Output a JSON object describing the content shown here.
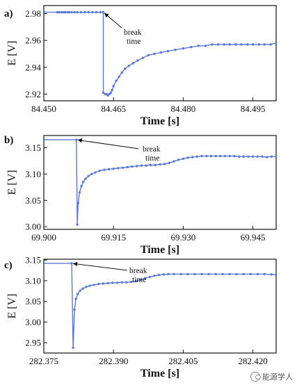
{
  "watermark": "能源学人",
  "colors": {
    "series": "#5b78d4",
    "axis": "#111111"
  },
  "chart_data": [
    {
      "type": "line",
      "panel_label": "a)",
      "xlabel": "Time [s]",
      "ylabel": "E [V]",
      "xlim": [
        84.45,
        84.5
      ],
      "ylim": [
        2.915,
        2.986
      ],
      "xticks": [
        84.45,
        84.465,
        84.48,
        84.495
      ],
      "xtick_labels": [
        "84.450",
        "84.465",
        "84.480",
        "84.495"
      ],
      "yticks": [
        2.92,
        2.94,
        2.96,
        2.98
      ],
      "ytick_labels": [
        "2.92",
        "2.94",
        "2.96",
        "2.98"
      ],
      "annotation": {
        "text_line1": "break",
        "text_line2": "time",
        "x": 84.4628,
        "y": 2.981
      },
      "series": [
        {
          "color": "#5b78d4",
          "x": [
            84.45,
            84.4529,
            84.4529,
            84.4533,
            84.4538,
            84.4542,
            84.4546,
            84.4551,
            84.4555,
            84.456,
            84.4566,
            84.4572,
            84.458,
            84.4588,
            84.4596,
            84.4605,
            84.4613,
            84.4622,
            84.4628,
            84.4628,
            84.4632,
            84.4635,
            84.4638,
            84.4641,
            84.4644,
            84.4647,
            84.465
          ],
          "y": [
            2.981,
            2.981,
            2.981,
            2.981,
            2.981,
            2.981,
            2.981,
            2.981,
            2.981,
            2.981,
            2.981,
            2.981,
            2.981,
            2.981,
            2.981,
            2.981,
            2.981,
            2.981,
            2.981,
            2.921,
            2.92,
            2.92,
            2.919,
            2.92,
            2.921,
            2.923,
            2.926
          ]
        },
        {
          "color": "#5b78d4",
          "x": [
            84.465,
            84.4656,
            84.4662,
            84.4668,
            84.4675,
            84.4683,
            84.4692,
            84.4702,
            84.4713,
            84.4725,
            84.4738,
            84.4752,
            84.4767,
            84.4783,
            84.48,
            84.4817,
            84.4833,
            84.4848,
            84.4862,
            84.4875,
            84.4888,
            84.49,
            84.4913,
            84.4925,
            84.4938,
            84.495,
            84.4963,
            84.4975,
            84.4988,
            84.5
          ],
          "y": [
            2.926,
            2.93,
            2.933,
            2.936,
            2.939,
            2.941,
            2.943,
            2.945,
            2.947,
            2.949,
            2.95,
            2.951,
            2.952,
            2.953,
            2.954,
            2.955,
            2.956,
            2.956,
            2.957,
            2.957,
            2.957,
            2.957,
            2.957,
            2.957,
            2.957,
            2.957,
            2.957,
            2.957,
            2.957,
            2.958
          ]
        }
      ]
    },
    {
      "type": "line",
      "panel_label": "b)",
      "xlabel": "Time [s]",
      "ylabel": "E [V]",
      "xlim": [
        69.9,
        69.95
      ],
      "ylim": [
        2.995,
        3.173
      ],
      "xticks": [
        69.9,
        69.915,
        69.93,
        69.945
      ],
      "xtick_labels": [
        "69.900",
        "69.915",
        "69.930",
        "69.945"
      ],
      "yticks": [
        3.0,
        3.05,
        3.1,
        3.15
      ],
      "ytick_labels": [
        "3.00",
        "3.05",
        "3.10",
        "3.15"
      ],
      "annotation": {
        "text_line1": "break",
        "text_line2": "time",
        "x": 69.907,
        "y": 3.165
      },
      "series": [
        {
          "color": "#5b78d4",
          "x": [
            69.9,
            69.907,
            69.9072,
            69.9074,
            69.9077,
            69.9081,
            69.9085,
            69.909,
            69.9096,
            69.9103,
            69.9111,
            69.912,
            69.913,
            69.914,
            69.915,
            69.916,
            69.917,
            69.918,
            69.919,
            69.92,
            69.921,
            69.922,
            69.923,
            69.924,
            69.925,
            69.926,
            69.927,
            69.928,
            69.929,
            69.93,
            69.931,
            69.932,
            69.933,
            69.934,
            69.935,
            69.936,
            69.937,
            69.938,
            69.939,
            69.94,
            69.941,
            69.942,
            69.943,
            69.944,
            69.945,
            69.946,
            69.947,
            69.948,
            69.949,
            69.95
          ],
          "y": [
            3.165,
            3.165,
            3.004,
            3.045,
            3.065,
            3.077,
            3.085,
            3.091,
            3.096,
            3.1,
            3.103,
            3.106,
            3.108,
            3.109,
            3.11,
            3.111,
            3.112,
            3.113,
            3.114,
            3.115,
            3.116,
            3.116,
            3.117,
            3.117,
            3.118,
            3.119,
            3.121,
            3.124,
            3.127,
            3.129,
            3.131,
            3.132,
            3.133,
            3.134,
            3.134,
            3.134,
            3.134,
            3.134,
            3.134,
            3.134,
            3.134,
            3.133,
            3.133,
            3.133,
            3.133,
            3.133,
            3.133,
            3.132,
            3.133,
            3.133
          ]
        }
      ]
    },
    {
      "type": "line",
      "panel_label": "c)",
      "xlabel": "Time [s]",
      "ylabel": "E [V]",
      "xlim": [
        282.375,
        282.425
      ],
      "ylim": [
        2.925,
        3.152
      ],
      "xticks": [
        282.375,
        282.39,
        282.405,
        282.42
      ],
      "xtick_labels": [
        "282.375",
        "282.390",
        "282.405",
        "282.420"
      ],
      "yticks": [
        2.95,
        3.0,
        3.05,
        3.1,
        3.15
      ],
      "ytick_labels": [
        "2.95",
        "3.00",
        "3.05",
        "3.10",
        "3.15"
      ],
      "annotation": {
        "text_line1": "break",
        "text_line2": "time",
        "x": 282.381,
        "y": 3.142
      },
      "series": [
        {
          "color": "#5b78d4",
          "x": [
            282.375,
            282.381,
            282.3813,
            282.3816,
            282.3819,
            282.3823,
            282.3828,
            282.3834,
            282.3841,
            282.3849,
            282.3858,
            282.3868,
            282.3878,
            282.3888,
            282.3898,
            282.3908,
            282.3918,
            282.3928,
            282.3938,
            282.3948,
            282.3958,
            282.3968,
            282.3978,
            282.3988,
            282.3998,
            282.4008,
            282.4018,
            282.403,
            282.4045,
            282.406,
            282.4075,
            282.409,
            282.4105,
            282.412,
            282.4135,
            282.415,
            282.4165,
            282.418,
            282.4195,
            282.421,
            282.4225,
            282.424,
            282.425
          ],
          "y": [
            3.142,
            3.142,
            2.938,
            3.03,
            3.056,
            3.068,
            3.076,
            3.081,
            3.085,
            3.088,
            3.09,
            3.092,
            3.093,
            3.094,
            3.095,
            3.095,
            3.096,
            3.096,
            3.097,
            3.099,
            3.102,
            3.106,
            3.109,
            3.112,
            3.114,
            3.115,
            3.116,
            3.116,
            3.116,
            3.116,
            3.116,
            3.116,
            3.116,
            3.116,
            3.116,
            3.116,
            3.116,
            3.116,
            3.116,
            3.116,
            3.116,
            3.115,
            3.115
          ]
        }
      ]
    }
  ]
}
